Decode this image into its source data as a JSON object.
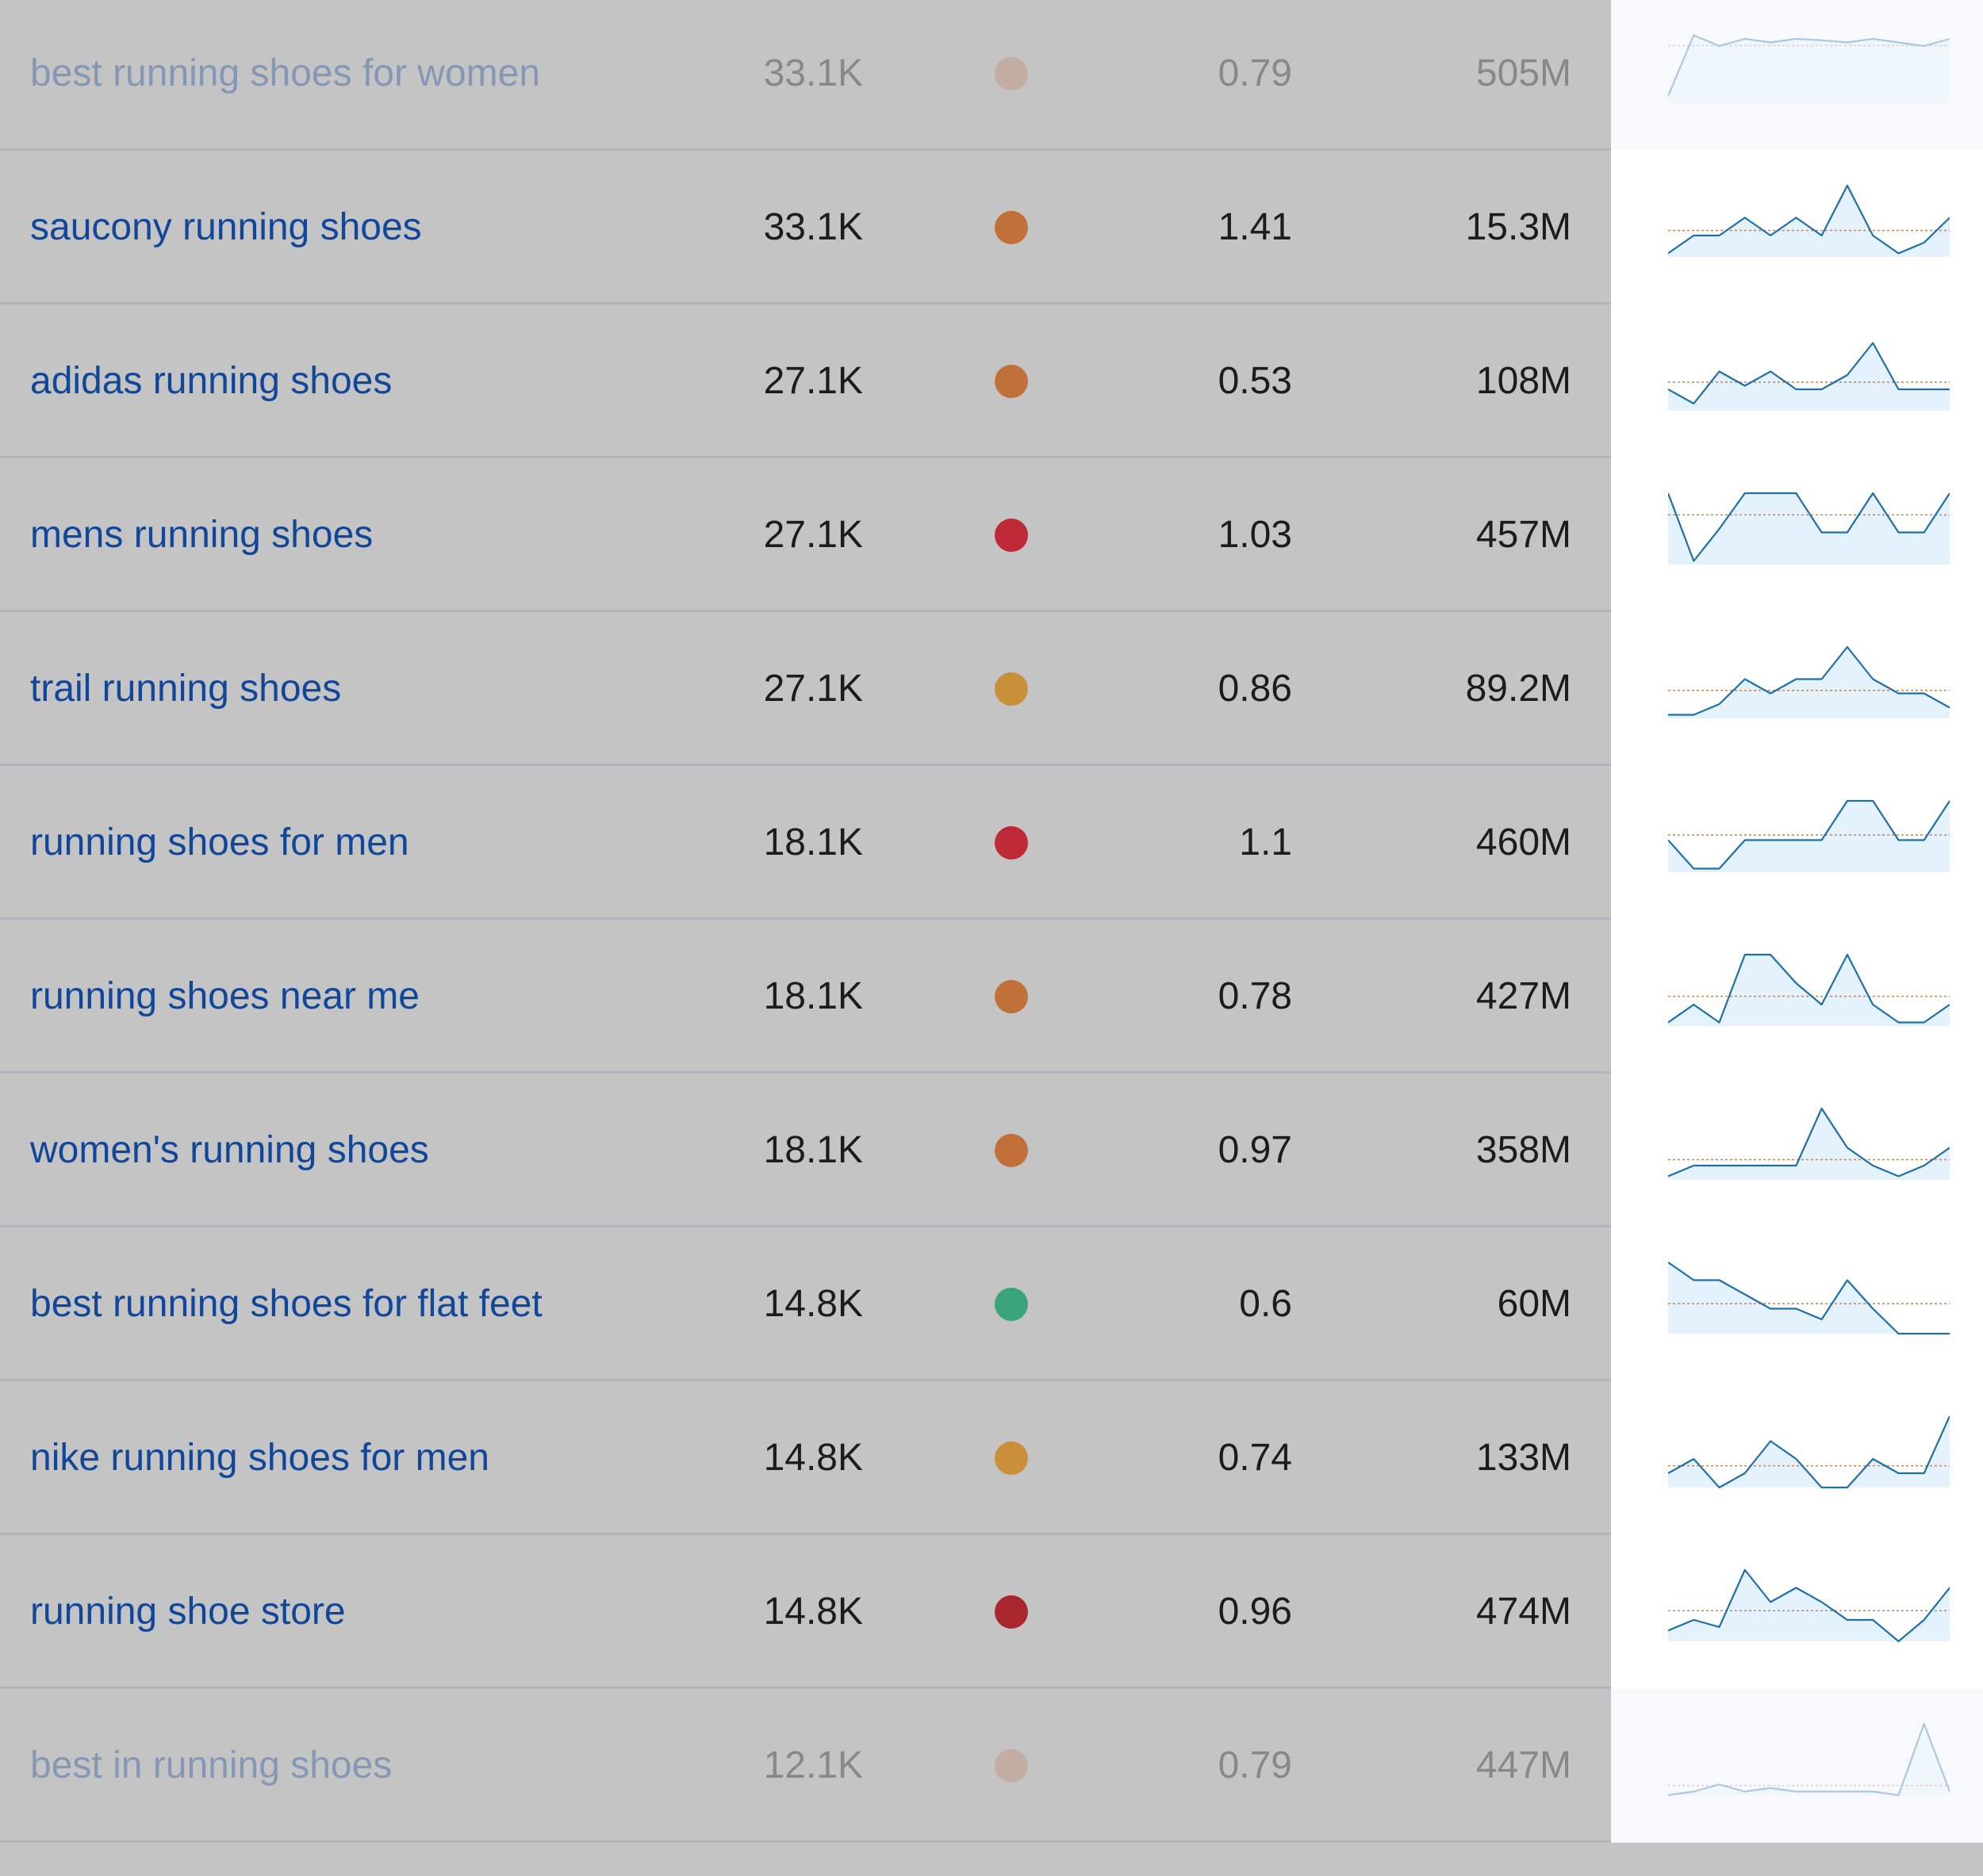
{
  "colors": {
    "keyword": "#10479a",
    "text": "#1c1c1c",
    "trend_line": "#1f6fa8",
    "trend_fill": "#e3f2fc",
    "trend_avg": "#e07b39"
  },
  "rows": [
    {
      "keyword": "best running shoes for women",
      "volume": "33.1K",
      "kd_color": "#c48a6e",
      "cpc": "0.79",
      "results": "505M",
      "faded": true,
      "trend": [
        0.1,
        0.95,
        0.8,
        0.9,
        0.85,
        0.9,
        0.88,
        0.85,
        0.9,
        0.85,
        0.8,
        0.9
      ]
    },
    {
      "keyword": "saucony running shoes",
      "volume": "33.1K",
      "kd_color": "#c2703a",
      "cpc": "1.41",
      "results": "15.3M",
      "faded": false,
      "trend": [
        0.05,
        0.3,
        0.3,
        0.55,
        0.3,
        0.55,
        0.3,
        1.0,
        0.3,
        0.05,
        0.2,
        0.55
      ]
    },
    {
      "keyword": "adidas running shoes",
      "volume": "27.1K",
      "kd_color": "#c2703a",
      "cpc": "0.53",
      "results": "108M",
      "faded": false,
      "trend": [
        0.3,
        0.1,
        0.55,
        0.35,
        0.55,
        0.3,
        0.3,
        0.5,
        0.95,
        0.3,
        0.3,
        0.3
      ]
    },
    {
      "keyword": "mens running shoes",
      "volume": "27.1K",
      "kd_color": "#be2937",
      "cpc": "1.03",
      "results": "457M",
      "faded": false,
      "trend": [
        1.0,
        0.05,
        0.5,
        1.0,
        1.0,
        1.0,
        0.45,
        0.45,
        1.0,
        0.45,
        0.45,
        1.0
      ]
    },
    {
      "keyword": "trail running shoes",
      "volume": "27.1K",
      "kd_color": "#c99039",
      "cpc": "0.86",
      "results": "89.2M",
      "faded": false,
      "trend": [
        0.05,
        0.05,
        0.2,
        0.55,
        0.35,
        0.55,
        0.55,
        1.0,
        0.55,
        0.35,
        0.35,
        0.15
      ]
    },
    {
      "keyword": "running shoes for men",
      "volume": "18.1K",
      "kd_color": "#be2937",
      "cpc": "1.1",
      "results": "460M",
      "faded": false,
      "trend": [
        0.45,
        0.05,
        0.05,
        0.45,
        0.45,
        0.45,
        0.45,
        1.0,
        1.0,
        0.45,
        0.45,
        1.0
      ]
    },
    {
      "keyword": "running shoes near me",
      "volume": "18.1K",
      "kd_color": "#c2703a",
      "cpc": "0.78",
      "results": "427M",
      "faded": false,
      "trend": [
        0.05,
        0.3,
        0.05,
        1.0,
        1.0,
        0.6,
        0.3,
        1.0,
        0.3,
        0.05,
        0.05,
        0.3
      ]
    },
    {
      "keyword": "women's running shoes",
      "volume": "18.1K",
      "kd_color": "#c2703a",
      "cpc": "0.97",
      "results": "358M",
      "faded": false,
      "trend": [
        0.05,
        0.2,
        0.2,
        0.2,
        0.2,
        0.2,
        1.0,
        0.45,
        0.2,
        0.05,
        0.2,
        0.45
      ]
    },
    {
      "keyword": "best running shoes for flat feet",
      "volume": "14.8K",
      "kd_color": "#3aa57a",
      "cpc": "0.6",
      "results": "60M",
      "faded": false,
      "trend": [
        1.0,
        0.75,
        0.75,
        0.55,
        0.35,
        0.35,
        0.2,
        0.75,
        0.35,
        0.0,
        0.0,
        0.0
      ]
    },
    {
      "keyword": "nike running shoes for men",
      "volume": "14.8K",
      "kd_color": "#c99039",
      "cpc": "0.74",
      "results": "133M",
      "faded": false,
      "trend": [
        0.2,
        0.4,
        0.0,
        0.2,
        0.65,
        0.4,
        0.0,
        0.0,
        0.4,
        0.2,
        0.2,
        1.0
      ]
    },
    {
      "keyword": "running shoe store",
      "volume": "14.8K",
      "kd_color": "#a8262e",
      "cpc": "0.96",
      "results": "474M",
      "faded": false,
      "trend": [
        0.15,
        0.3,
        0.2,
        1.0,
        0.55,
        0.75,
        0.55,
        0.3,
        0.3,
        0.0,
        0.3,
        0.75
      ]
    },
    {
      "keyword": "best in running shoes",
      "volume": "12.1K",
      "kd_color": "#c48a6e",
      "cpc": "0.79",
      "results": "447M",
      "faded": true,
      "trend": [
        0.0,
        0.05,
        0.15,
        0.05,
        0.1,
        0.05,
        0.05,
        0.05,
        0.05,
        0.0,
        1.0,
        0.05
      ]
    }
  ]
}
